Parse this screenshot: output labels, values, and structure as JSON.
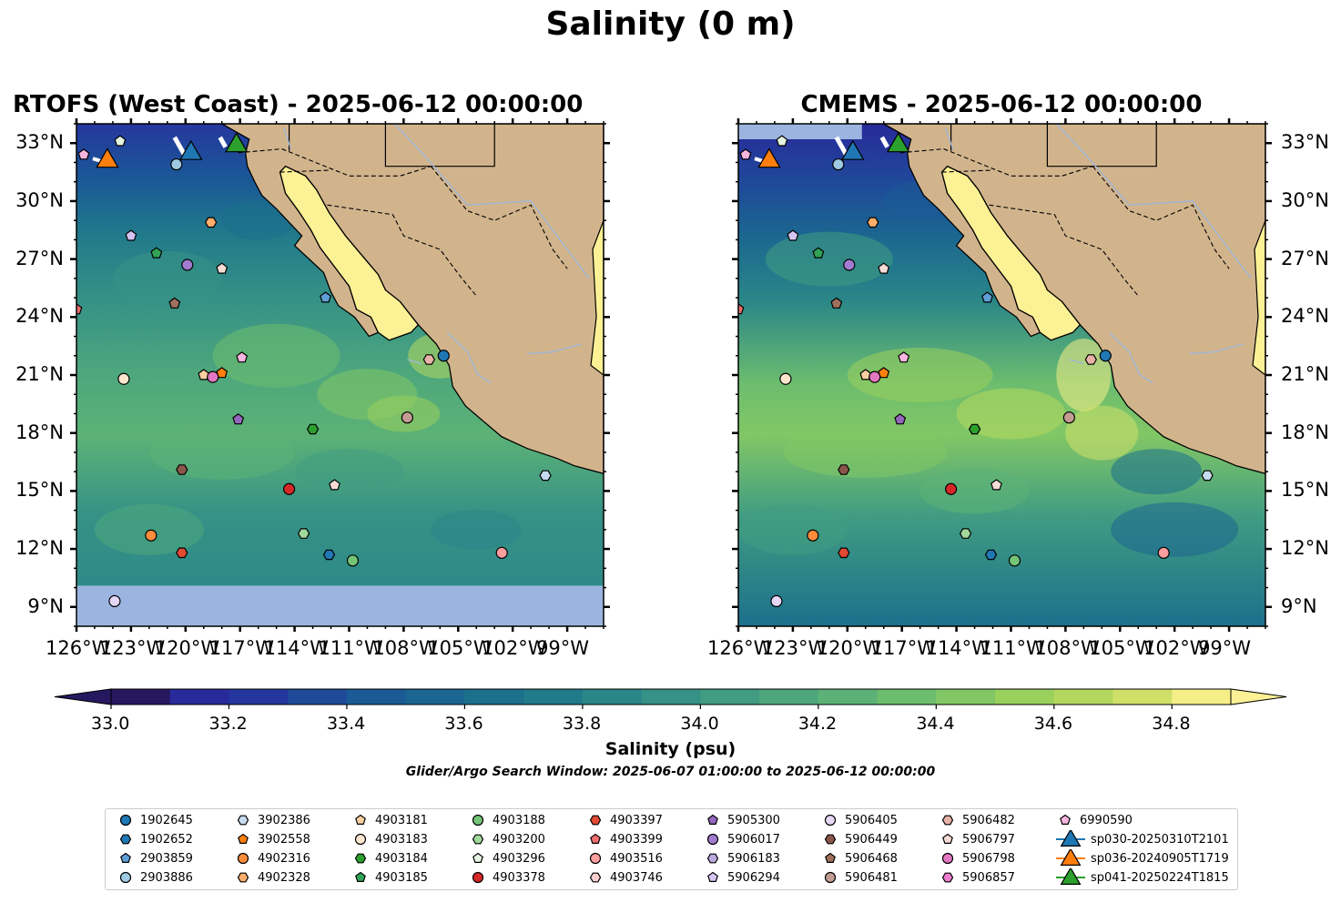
{
  "figure": {
    "title": "Salinity (0 m)",
    "search_window": "Glider/Argo Search Window: 2025-06-07 01:00:00 to 2025-06-12 00:00:00"
  },
  "panels": [
    {
      "title": "RTOFS (West Coast) - 2025-06-12 00:00:00",
      "model": "RTOFS"
    },
    {
      "title": "CMEMS - 2025-06-12 00:00:00",
      "model": "CMEMS"
    }
  ],
  "map_extent": {
    "lon": [
      -126,
      -97
    ],
    "lat": [
      8,
      34
    ]
  },
  "lat_ticks": [
    "33°N",
    "30°N",
    "27°N",
    "24°N",
    "21°N",
    "18°N",
    "15°N",
    "12°N",
    "9°N"
  ],
  "lon_ticks": [
    "126°W",
    "123°W",
    "120°W",
    "117°W",
    "114°W",
    "111°W",
    "108°W",
    "105°W",
    "102°W",
    "99°W"
  ],
  "colorbar": {
    "label": "Salinity (psu)",
    "range": [
      33.0,
      34.9
    ],
    "ticks": [
      "33.0",
      "33.2",
      "33.4",
      "33.6",
      "33.8",
      "34.0",
      "34.2",
      "34.4",
      "34.6",
      "34.8"
    ],
    "extend": "both",
    "colors": [
      "#26185f",
      "#282a9a",
      "#25379e",
      "#1f4a9a",
      "#1a5b96",
      "#1b6690",
      "#1c708c",
      "#217a8a",
      "#2a8688",
      "#369186",
      "#419c82",
      "#4ea77c",
      "#5cb276",
      "#6dbd6e",
      "#82c765",
      "#9ad05c",
      "#b4d85e",
      "#cfe069",
      "#f6ee86",
      "#fdf195"
    ],
    "land_color": "#d2b48c",
    "nodata_color": "#9bb5e0"
  },
  "legend": [
    {
      "label": "1902645",
      "marker": "circle",
      "color": "#1f77b4"
    },
    {
      "label": "1902652",
      "marker": "hexagon",
      "color": "#1f77b4"
    },
    {
      "label": "2903859",
      "marker": "pentagon",
      "color": "#5e9ed6"
    },
    {
      "label": "2903886",
      "marker": "circle",
      "color": "#9ecae1"
    },
    {
      "label": "3902386",
      "marker": "hexagon",
      "color": "#c6dbef"
    },
    {
      "label": "3902558",
      "marker": "pentagon",
      "color": "#ff7f0e"
    },
    {
      "label": "4902316",
      "marker": "circle",
      "color": "#fd8d3c"
    },
    {
      "label": "4902328",
      "marker": "hexagon",
      "color": "#fdae6b"
    },
    {
      "label": "4903181",
      "marker": "pentagon",
      "color": "#fdd0a2"
    },
    {
      "label": "4903183",
      "marker": "circle",
      "color": "#fee6ce"
    },
    {
      "label": "4903184",
      "marker": "hexagon",
      "color": "#2ca02c"
    },
    {
      "label": "4903185",
      "marker": "pentagon",
      "color": "#31a354"
    },
    {
      "label": "4903188",
      "marker": "circle",
      "color": "#74c476"
    },
    {
      "label": "4903200",
      "marker": "hexagon",
      "color": "#a1d99b"
    },
    {
      "label": "4903296",
      "marker": "pentagon",
      "color": "#e5f5e0"
    },
    {
      "label": "4903378",
      "marker": "circle",
      "color": "#d62728"
    },
    {
      "label": "4903397",
      "marker": "hexagon",
      "color": "#e34a33"
    },
    {
      "label": "4903399",
      "marker": "pentagon",
      "color": "#ef6e6e"
    },
    {
      "label": "4903516",
      "marker": "circle",
      "color": "#fc9e9e"
    },
    {
      "label": "4903746",
      "marker": "hexagon",
      "color": "#fdd0d0"
    },
    {
      "label": "5905300",
      "marker": "pentagon",
      "color": "#9467bd"
    },
    {
      "label": "5906017",
      "marker": "circle",
      "color": "#a37bd0"
    },
    {
      "label": "5906183",
      "marker": "hexagon",
      "color": "#bcaae0"
    },
    {
      "label": "5906294",
      "marker": "pentagon",
      "color": "#d6c5f2"
    },
    {
      "label": "5906405",
      "marker": "circle",
      "color": "#e6d7f7"
    },
    {
      "label": "5906449",
      "marker": "hexagon",
      "color": "#8c564b"
    },
    {
      "label": "5906468",
      "marker": "pentagon",
      "color": "#a0705f"
    },
    {
      "label": "5906481",
      "marker": "circle",
      "color": "#c49c94"
    },
    {
      "label": "5906482",
      "marker": "hexagon",
      "color": "#e7b3a8"
    },
    {
      "label": "5906797",
      "marker": "pentagon",
      "color": "#f7dcd5"
    },
    {
      "label": "5906798",
      "marker": "circle",
      "color": "#e377c2"
    },
    {
      "label": "5906857",
      "marker": "hexagon",
      "color": "#f07ecf"
    },
    {
      "label": "6990590",
      "marker": "pentagon",
      "color": "#f7b6e0"
    },
    {
      "label": "sp030-20250310T2101",
      "marker": "triangle",
      "color": "#1f77b4"
    },
    {
      "label": "sp036-20240905T1719",
      "marker": "triangle",
      "color": "#ff7f0e"
    },
    {
      "label": "sp041-20250224T1815",
      "marker": "triangle",
      "color": "#2ca02c"
    }
  ],
  "floats": [
    {
      "id": "6990590",
      "lon": -125.6,
      "lat": 32.4
    },
    {
      "id": "4903296",
      "lon": -123.6,
      "lat": 33.1
    },
    {
      "id": "2903886",
      "lon": -120.5,
      "lat": 31.9
    },
    {
      "id": "5906294",
      "lon": -123.0,
      "lat": 28.2
    },
    {
      "id": "4902328",
      "lon": -118.6,
      "lat": 28.9
    },
    {
      "id": "4903185",
      "lon": -121.6,
      "lat": 27.3
    },
    {
      "id": "5906017",
      "lon": -119.9,
      "lat": 26.7
    },
    {
      "id": "5906797",
      "lon": -118.0,
      "lat": 26.5
    },
    {
      "id": "2903859",
      "lon": -112.3,
      "lat": 25.0
    },
    {
      "id": "4903399",
      "lon": -126.0,
      "lat": 24.4
    },
    {
      "id": "5906468",
      "lon": -120.6,
      "lat": 24.7
    },
    {
      "id": "1902645",
      "lon": -105.8,
      "lat": 22.0
    },
    {
      "id": "5906482",
      "lon": -106.6,
      "lat": 21.8
    },
    {
      "id": "6990590",
      "lon": -116.9,
      "lat": 21.9
    },
    {
      "id": "4903183",
      "lon": -123.4,
      "lat": 20.8
    },
    {
      "id": "4903181",
      "lon": -119.0,
      "lat": 21.0
    },
    {
      "id": "5906798",
      "lon": -118.5,
      "lat": 20.9
    },
    {
      "id": "3902558",
      "lon": -118.0,
      "lat": 21.1
    },
    {
      "id": "5905300",
      "lon": -117.1,
      "lat": 18.7
    },
    {
      "id": "5906481",
      "lon": -107.8,
      "lat": 18.8
    },
    {
      "id": "4903184",
      "lon": -113.0,
      "lat": 18.2
    },
    {
      "id": "5906449",
      "lon": -120.2,
      "lat": 16.1
    },
    {
      "id": "4903378",
      "lon": -114.3,
      "lat": 15.1
    },
    {
      "id": "5906797",
      "lon": -111.8,
      "lat": 15.3
    },
    {
      "id": "3902386",
      "lon": -100.2,
      "lat": 15.8
    },
    {
      "id": "4902316",
      "lon": -121.9,
      "lat": 12.7
    },
    {
      "id": "4903200",
      "lon": -113.5,
      "lat": 12.8
    },
    {
      "id": "4903397",
      "lon": -120.2,
      "lat": 11.8
    },
    {
      "id": "1902652",
      "lon": -112.1,
      "lat": 11.7
    },
    {
      "id": "4903188",
      "lon": -110.8,
      "lat": 11.4
    },
    {
      "id": "4903516",
      "lon": -102.6,
      "lat": 11.8
    },
    {
      "id": "5906405",
      "lon": -123.9,
      "lat": 9.3
    }
  ],
  "gliders": [
    {
      "id": "sp036-20240905T1719",
      "lon": -124.3,
      "lat": 32.2
    },
    {
      "id": "sp030-20250310T2101",
      "lon": -119.7,
      "lat": 32.6
    },
    {
      "id": "sp041-20250224T1815",
      "lon": -117.2,
      "lat": 33.0
    }
  ]
}
